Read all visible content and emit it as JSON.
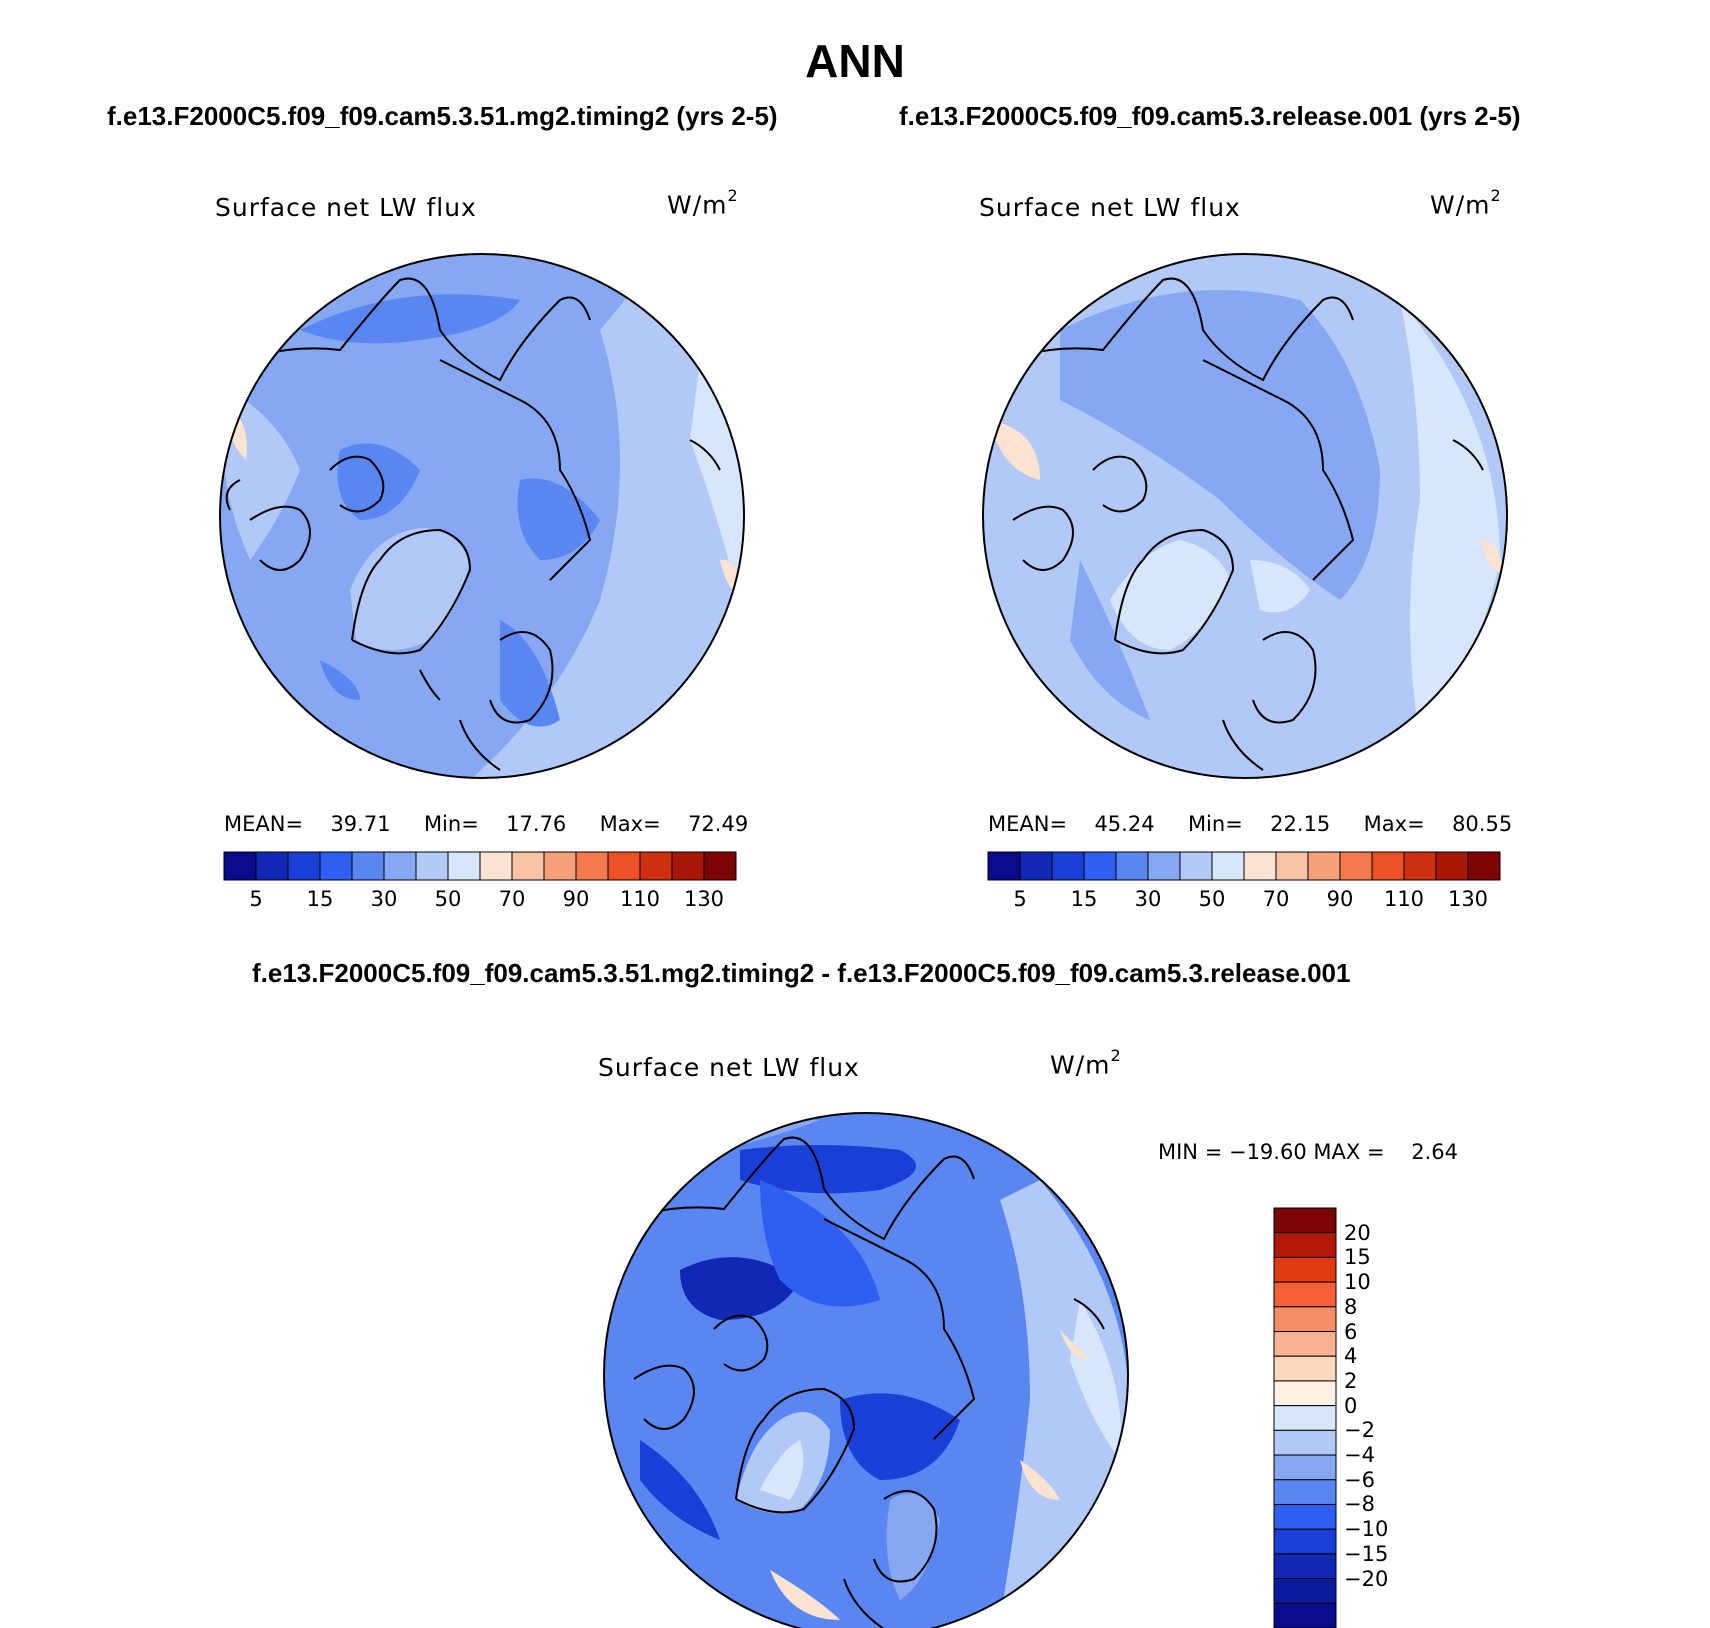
{
  "figure": {
    "season": "ANN",
    "case_a_title": "f.e13.F2000C5.f09_f09.cam5.3.51.mg2.timing2 (yrs 2-5)",
    "case_b_title": "f.e13.F2000C5.f09_f09.cam5.3.release.001 (yrs 2-5)",
    "diff_title": "f.e13.F2000C5.f09_f09.cam5.3.51.mg2.timing2 - f.e13.F2000C5.f09_f09.cam5.3.release.001"
  },
  "panels": [
    {
      "variable": "Surface net LW flux",
      "units": "W/m",
      "units_exp": "2",
      "mean_label": "MEAN=",
      "mean": "39.71",
      "min_label": "Min=",
      "min": "17.76",
      "max_label": "Max=",
      "max": "72.49"
    },
    {
      "variable": "Surface net LW flux",
      "units": "W/m",
      "units_exp": "2",
      "mean_label": "MEAN=",
      "mean": "45.24",
      "min_label": "Min=",
      "min": "22.15",
      "max_label": "Max=",
      "max": "80.55"
    },
    {
      "variable": "Surface net LW flux",
      "units": "W/m",
      "units_exp": "2",
      "minmax_text": "MIN = −19.60 MAX =    2.64"
    }
  ],
  "colorbar_abs": {
    "colors": [
      "#0a0a8c",
      "#1028b4",
      "#1a3fd6",
      "#2e5ff0",
      "#5a86f2",
      "#86a8f3",
      "#b2c8f6",
      "#d7e6fa",
      "#fbe3d2",
      "#f9c4a6",
      "#f6a07c",
      "#f47a4e",
      "#ec5126",
      "#cc3010",
      "#a81806",
      "#7c0404"
    ],
    "tick_labels": [
      "5",
      "15",
      "30",
      "50",
      "70",
      "90",
      "110",
      "130"
    ]
  },
  "colorbar_diff": {
    "colors": [
      "#7c0404",
      "#b21808",
      "#e03a10",
      "#f66038",
      "#f88c62",
      "#f9b292",
      "#fbd8c0",
      "#fdf0e4",
      "#d7e6fa",
      "#b2c8f6",
      "#86a8f3",
      "#5a86f2",
      "#2e5ff0",
      "#1a3fd6",
      "#1028b4",
      "#0c1aa0",
      "#0a0a8c"
    ],
    "tick_labels": [
      "20",
      "15",
      "10",
      "8",
      "6",
      "4",
      "2",
      "0",
      "−2",
      "−4",
      "−6",
      "−8",
      "−10",
      "−15",
      "−20"
    ]
  }
}
